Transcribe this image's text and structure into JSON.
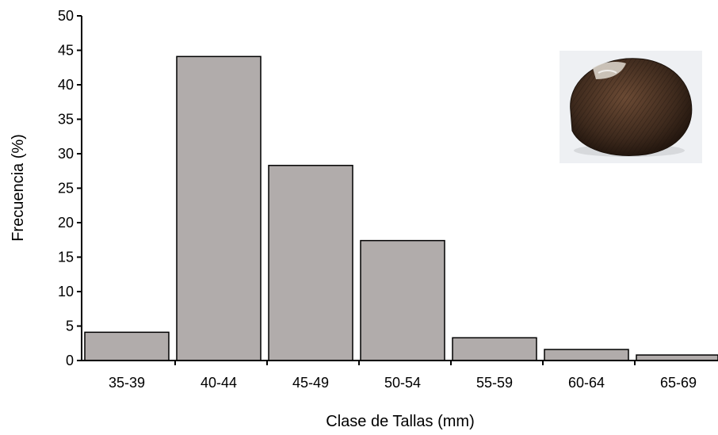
{
  "chart_data": {
    "type": "bar",
    "categories": [
      "35-39",
      "40-44",
      "45-49",
      "50-54",
      "55-59",
      "60-64",
      "65-69"
    ],
    "values": [
      4.1,
      44.1,
      28.3,
      17.4,
      3.3,
      1.6,
      0.8
    ],
    "title": "",
    "xlabel": "Clase de Tallas (mm)",
    "ylabel": "Frecuencia (%)",
    "ylim": [
      0,
      50
    ],
    "yticks": [
      0,
      5,
      10,
      15,
      20,
      25,
      30,
      35,
      40,
      45,
      50
    ],
    "grid": false,
    "legend": "none",
    "bar_color": "#b1acab",
    "inset_image": "clam-shell-photo"
  }
}
